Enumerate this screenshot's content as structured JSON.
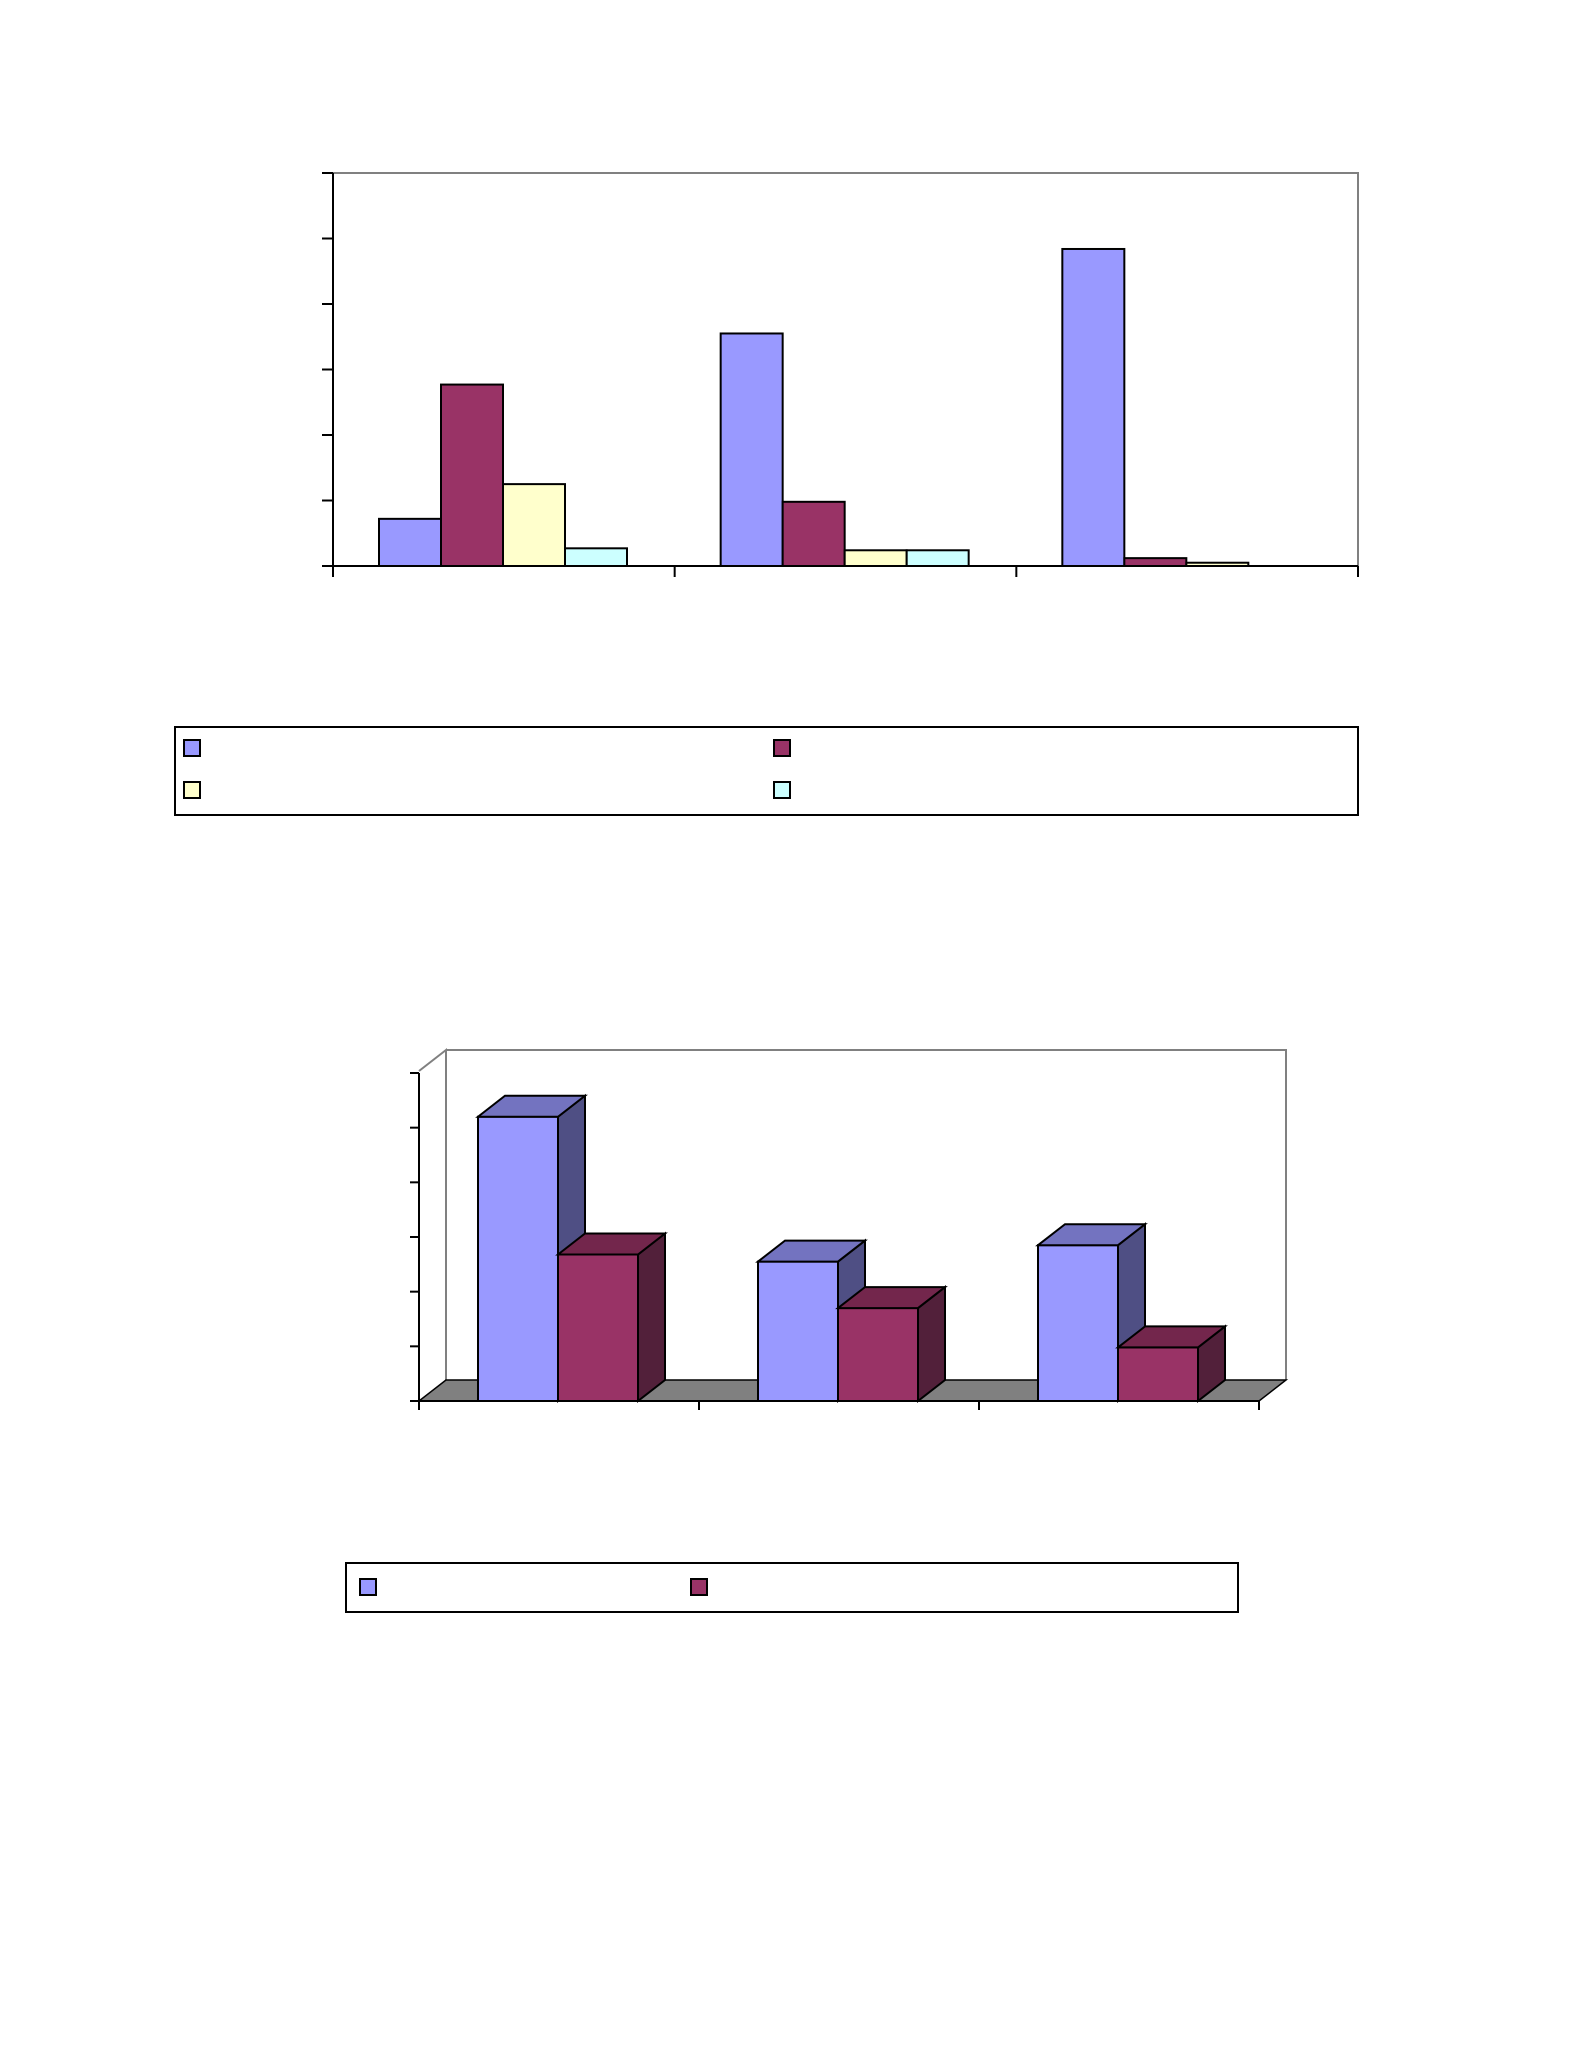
{
  "palette": {
    "series": [
      "#9999ff",
      "#993366",
      "#ffffcc",
      "#ccffff"
    ],
    "series_dark": [
      "#4f4f84",
      "#52203a"
    ],
    "series_top": [
      "#7373c0",
      "#73264c"
    ],
    "floor": "#808080",
    "plot_border": "#808080",
    "axis": "#000000"
  },
  "chart_data": [
    {
      "type": "bar",
      "style": "2d-clustered",
      "title": "",
      "xlabel": "",
      "ylabel": "",
      "categories": [
        "",
        "",
        ""
      ],
      "ylim": [
        0,
        6
      ],
      "ytick_count": 6,
      "grid": false,
      "legend": "bottom",
      "series": [
        {
          "values": [
            0.72,
            3.55,
            4.84
          ]
        },
        {
          "values": [
            2.77,
            0.98,
            0.12
          ]
        },
        {
          "values": [
            1.25,
            0.24,
            0.05
          ]
        },
        {
          "values": [
            0.27,
            0.24,
            0.0
          ]
        }
      ]
    },
    {
      "type": "bar",
      "style": "3d-clustered",
      "title": "",
      "xlabel": "",
      "ylabel": "",
      "categories": [
        "",
        "",
        ""
      ],
      "ylim": [
        0,
        6
      ],
      "ytick_count": 6,
      "grid": false,
      "legend": "bottom",
      "series": [
        {
          "values": [
            5.2,
            2.55,
            2.85
          ]
        },
        {
          "values": [
            2.68,
            1.7,
            0.98
          ]
        }
      ]
    }
  ]
}
